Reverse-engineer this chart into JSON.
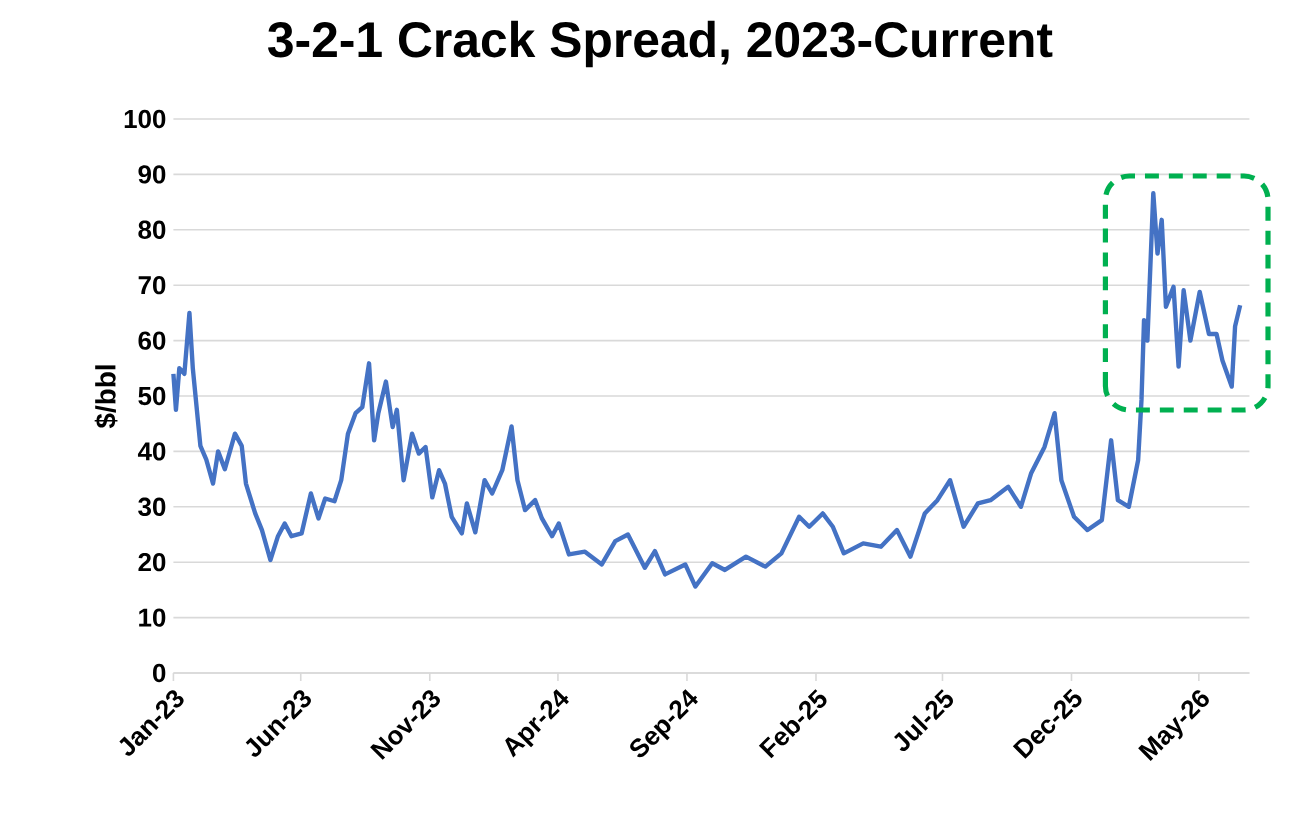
{
  "chart_data": {
    "type": "line",
    "title": "3-2-1 Crack Spread, 2023-Current",
    "ylabel": "$/bbl",
    "color": "#4472c4",
    "grid": "y",
    "line_style": "solid",
    "x": [
      "2023-01-01",
      "2023-01-04",
      "2023-01-08",
      "2023-01-14",
      "2023-01-20",
      "2023-01-24",
      "2023-02-02",
      "2023-02-09",
      "2023-02-17",
      "2023-02-23",
      "2023-03-03",
      "2023-03-15",
      "2023-03-23",
      "2023-03-28",
      "2023-04-08",
      "2023-04-16",
      "2023-04-26",
      "2023-05-05",
      "2023-05-13",
      "2023-05-21",
      "2023-06-02",
      "2023-06-13",
      "2023-06-22",
      "2023-06-30",
      "2023-07-11",
      "2023-07-19",
      "2023-07-27",
      "2023-08-05",
      "2023-08-13",
      "2023-08-21",
      "2023-08-27",
      "2023-09-01",
      "2023-09-10",
      "2023-09-18",
      "2023-09-23",
      "2023-10-01",
      "2023-10-11",
      "2023-10-19",
      "2023-10-27",
      "2023-11-04",
      "2023-11-12",
      "2023-11-19",
      "2023-11-27",
      "2023-12-09",
      "2023-12-15",
      "2023-12-25",
      "2024-01-05",
      "2024-01-14",
      "2024-01-26",
      "2024-02-06",
      "2024-02-13",
      "2024-02-22",
      "2024-03-05",
      "2024-03-13",
      "2024-03-25",
      "2024-04-02",
      "2024-04-14",
      "2024-05-03",
      "2024-05-23",
      "2024-06-08",
      "2024-06-23",
      "2024-07-13",
      "2024-07-25",
      "2024-08-06",
      "2024-08-30",
      "2024-09-11",
      "2024-10-01",
      "2024-10-16",
      "2024-11-10",
      "2024-12-03",
      "2024-12-22",
      "2025-01-12",
      "2025-01-24",
      "2025-02-09",
      "2025-02-21",
      "2025-03-06",
      "2025-03-29",
      "2025-04-19",
      "2025-05-08",
      "2025-05-24",
      "2025-06-10",
      "2025-06-25",
      "2025-07-10",
      "2025-07-26",
      "2025-08-12",
      "2025-08-27",
      "2025-09-17",
      "2025-10-02",
      "2025-10-14",
      "2025-10-30",
      "2025-11-11",
      "2025-11-19",
      "2025-12-04",
      "2025-12-20",
      "2026-01-06",
      "2026-01-17",
      "2026-01-25",
      "2026-02-07",
      "2026-02-18",
      "2026-02-22",
      "2026-02-25",
      "2026-03-01",
      "2026-03-08",
      "2026-03-13",
      "2026-03-18",
      "2026-03-23",
      "2026-04-01",
      "2026-04-07",
      "2026-04-13",
      "2026-04-21",
      "2026-05-02",
      "2026-05-13",
      "2026-05-22",
      "2026-05-29",
      "2026-06-09",
      "2026-06-13",
      "2026-06-19"
    ],
    "values": [
      54,
      47.5,
      55,
      54,
      65,
      55,
      41,
      38.5,
      34.2,
      40,
      36.8,
      43.2,
      41,
      34.2,
      28.8,
      25.8,
      20.4,
      24.7,
      27,
      24.7,
      25.2,
      32.4,
      27.9,
      31.5,
      31,
      34.8,
      43.2,
      46.9,
      48,
      55.9,
      42,
      46.9,
      52.6,
      44.4,
      47.5,
      34.8,
      43.2,
      39.6,
      40.8,
      31.7,
      36.6,
      34.2,
      28.2,
      25.2,
      30.6,
      25.4,
      34.8,
      32.4,
      36.6,
      44.5,
      34.8,
      29.4,
      31.2,
      27.9,
      24.7,
      27,
      21.4,
      21.9,
      19.6,
      23.8,
      25,
      19,
      22,
      17.8,
      19.6,
      15.6,
      19.8,
      18.6,
      21,
      19.2,
      21.6,
      28.2,
      26.4,
      28.8,
      26.4,
      21.6,
      23.4,
      22.8,
      25.8,
      21,
      28.8,
      31.2,
      34.8,
      26.4,
      30.6,
      31.2,
      33.6,
      30,
      36,
      40.8,
      46.9,
      34.8,
      28.2,
      25.8,
      27.6,
      42,
      31.2,
      30,
      38.4,
      49.3,
      63.7,
      60,
      86.6,
      75.7,
      81.8,
      66.1,
      69.7,
      55.3,
      69.1,
      60,
      68.8,
      61.2,
      61.2,
      56.4,
      51.7,
      62.6,
      66.4
    ],
    "xlim": [
      "2023-01-01",
      "2026-06-30"
    ],
    "ylim": [
      0,
      100
    ],
    "xticks": [
      {
        "value": "2023-01-01",
        "label": "Jan-23"
      },
      {
        "value": "2023-06-01",
        "label": "Jun-23"
      },
      {
        "value": "2023-11-01",
        "label": "Nov-23"
      },
      {
        "value": "2024-04-01",
        "label": "Apr-24"
      },
      {
        "value": "2024-09-01",
        "label": "Sep-24"
      },
      {
        "value": "2025-02-01",
        "label": "Feb-25"
      },
      {
        "value": "2025-07-01",
        "label": "Jul-25"
      },
      {
        "value": "2025-12-01",
        "label": "Dec-25"
      },
      {
        "value": "2026-05-01",
        "label": "May-26"
      }
    ],
    "yticks": [
      0,
      10,
      20,
      30,
      40,
      50,
      60,
      70,
      80,
      90,
      100
    ]
  }
}
